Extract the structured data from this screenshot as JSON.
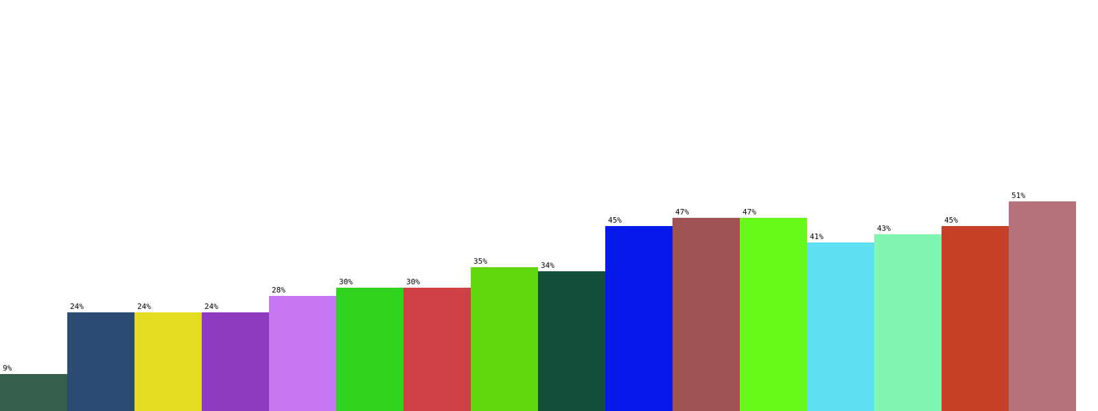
{
  "chart_data": {
    "type": "bar",
    "title": "",
    "xlabel": "",
    "ylabel": "",
    "ylim": [
      0,
      100
    ],
    "grid": false,
    "legend": "none",
    "values": [
      9,
      24,
      24,
      24,
      28,
      30,
      30,
      35,
      34,
      45,
      47,
      47,
      41,
      43,
      45,
      51
    ],
    "data_labels": [
      "9%",
      "24%",
      "24%",
      "24%",
      "28%",
      "30%",
      "30%",
      "35%",
      "34%",
      "45%",
      "47%",
      "47%",
      "41%",
      "43%",
      "45%",
      "51%"
    ],
    "colors": [
      "#35604c",
      "#2c4a72",
      "#e6dc22",
      "#8f3bbf",
      "#c878f2",
      "#30d41f",
      "#cd4044",
      "#62d60f",
      "#12503d",
      "#0419ea",
      "#a05252",
      "#68f81a",
      "#5ee0f2",
      "#80f6b0",
      "#c44128",
      "#b4737a"
    ]
  }
}
